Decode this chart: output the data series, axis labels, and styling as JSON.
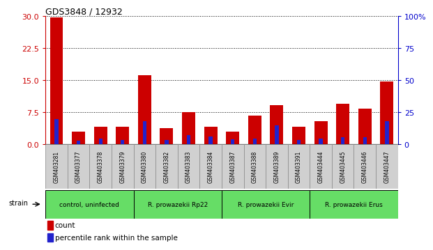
{
  "title": "GDS3848 / 12932",
  "samples": [
    "GSM403281",
    "GSM403377",
    "GSM403378",
    "GSM403379",
    "GSM403380",
    "GSM403382",
    "GSM403383",
    "GSM403384",
    "GSM403387",
    "GSM403388",
    "GSM403389",
    "GSM403391",
    "GSM403444",
    "GSM403445",
    "GSM403446",
    "GSM403447"
  ],
  "count_values": [
    29.7,
    3.0,
    4.2,
    4.1,
    16.2,
    3.8,
    7.6,
    4.2,
    3.0,
    6.8,
    9.2,
    4.2,
    5.5,
    9.5,
    8.3,
    14.8
  ],
  "percentile_values": [
    20.0,
    3.0,
    4.5,
    3.5,
    18.0,
    3.5,
    7.5,
    6.0,
    4.0,
    4.5,
    15.0,
    3.5,
    4.5,
    5.5,
    5.5,
    18.0
  ],
  "group_boundaries": [
    {
      "start": 0,
      "end": 3,
      "label": "control, uninfected"
    },
    {
      "start": 4,
      "end": 7,
      "label": "R. prowazekii Rp22"
    },
    {
      "start": 8,
      "end": 11,
      "label": "R. prowazekii Evir"
    },
    {
      "start": 12,
      "end": 15,
      "label": "R. prowazekii Erus"
    }
  ],
  "ylim_left": [
    0,
    30
  ],
  "ylim_right": [
    0,
    100
  ],
  "yticks_left": [
    0,
    7.5,
    15,
    22.5,
    30
  ],
  "yticks_right": [
    0,
    25,
    50,
    75,
    100
  ],
  "bar_color_red": "#cc0000",
  "bar_color_blue": "#2222cc",
  "bar_width": 0.6,
  "left_axis_color": "#cc0000",
  "right_axis_color": "#0000cc",
  "legend_count": "count",
  "legend_percentile": "percentile rank within the sample",
  "strain_label": "strain",
  "group_bg_color": "#66dd66",
  "xticklabel_bg": "#d0d0d0",
  "grid_color": "black",
  "spine_color": "black"
}
